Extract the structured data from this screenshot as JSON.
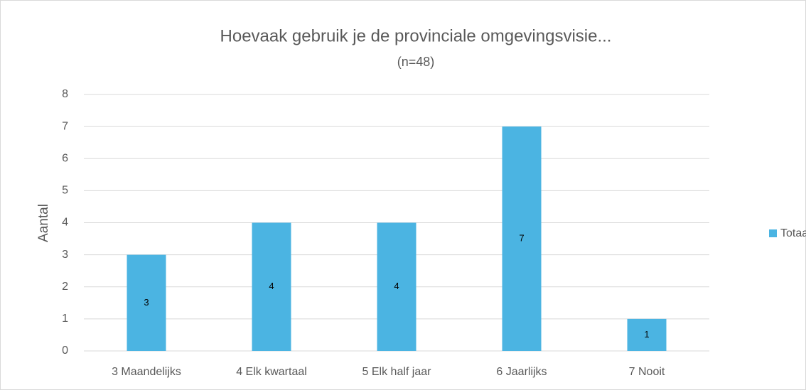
{
  "chart_data": {
    "type": "bar",
    "title": "Hoevaak gebruik je de provinciale omgevingsvisie...",
    "subtitle": "(n=48)",
    "y_label": "Aantal",
    "categories": [
      "3 Maandelijks",
      "4 Elk kwartaal",
      "5 Elk half jaar",
      "6 Jaarlijks",
      "7 Nooit"
    ],
    "series": [
      {
        "name": "Totaal",
        "color": "#4bb4e2",
        "values": [
          3,
          4,
          4,
          7,
          1
        ]
      }
    ],
    "ylim": [
      0,
      8
    ],
    "yticks": [
      0,
      1,
      2,
      3,
      4,
      5,
      6,
      7,
      8
    ],
    "grid": true,
    "legend": "right",
    "data_labels": true
  }
}
